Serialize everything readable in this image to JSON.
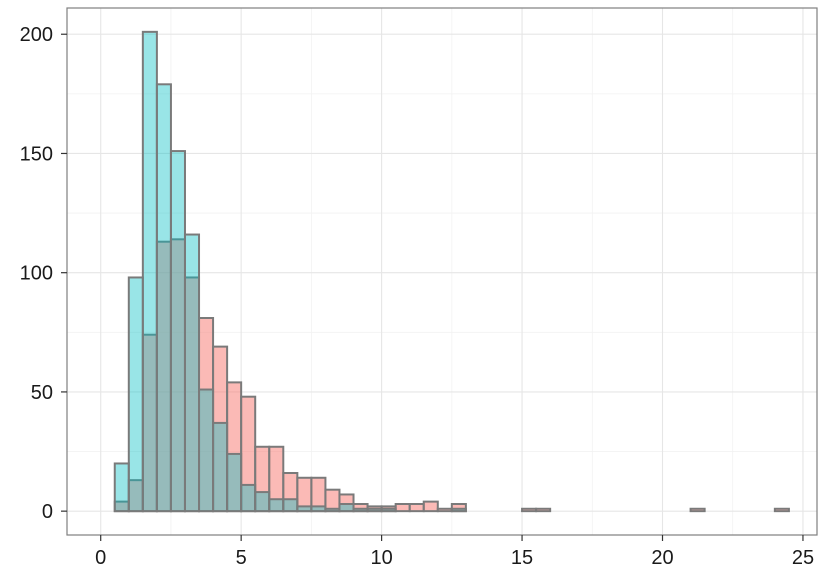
{
  "chart_data": {
    "type": "histogram",
    "title": "",
    "xlabel": "",
    "ylabel": "",
    "xlim": [
      -1.2,
      25.5
    ],
    "ylim": [
      -10,
      211
    ],
    "grid": true,
    "legend": "none",
    "bin_width": 0.5,
    "x_ticks": [
      "0",
      "5",
      "10",
      "15",
      "20",
      "25"
    ],
    "y_ticks": [
      "0",
      "50",
      "100",
      "150",
      "200"
    ],
    "x_tick_values": [
      0,
      5,
      10,
      15,
      20,
      25
    ],
    "y_tick_values": [
      0,
      50,
      100,
      150,
      200
    ],
    "series": [
      {
        "color": "#F8766D",
        "fill_opacity": 0.5,
        "bins": [
          {
            "x": 0.25,
            "y": 0
          },
          {
            "x": 0.75,
            "y": 4
          },
          {
            "x": 1.25,
            "y": 13
          },
          {
            "x": 1.75,
            "y": 74
          },
          {
            "x": 2.25,
            "y": 113
          },
          {
            "x": 2.75,
            "y": 114
          },
          {
            "x": 3.25,
            "y": 98
          },
          {
            "x": 3.75,
            "y": 81
          },
          {
            "x": 4.25,
            "y": 69
          },
          {
            "x": 4.75,
            "y": 54
          },
          {
            "x": 5.25,
            "y": 48
          },
          {
            "x": 5.75,
            "y": 27
          },
          {
            "x": 6.25,
            "y": 27
          },
          {
            "x": 6.75,
            "y": 16
          },
          {
            "x": 7.25,
            "y": 14
          },
          {
            "x": 7.75,
            "y": 14
          },
          {
            "x": 8.25,
            "y": 9
          },
          {
            "x": 8.75,
            "y": 7
          },
          {
            "x": 9.25,
            "y": 3
          },
          {
            "x": 9.75,
            "y": 2
          },
          {
            "x": 10.25,
            "y": 2
          },
          {
            "x": 10.75,
            "y": 3
          },
          {
            "x": 11.25,
            "y": 3
          },
          {
            "x": 11.75,
            "y": 4
          },
          {
            "x": 12.25,
            "y": 1
          },
          {
            "x": 12.75,
            "y": 3
          },
          {
            "x": 13.25,
            "y": 0
          },
          {
            "x": 13.75,
            "y": 0
          },
          {
            "x": 14.25,
            "y": 0
          },
          {
            "x": 14.75,
            "y": 0
          },
          {
            "x": 15.25,
            "y": 1
          },
          {
            "x": 15.75,
            "y": 1
          },
          {
            "x": 16.25,
            "y": 0
          },
          {
            "x": 16.75,
            "y": 0
          },
          {
            "x": 17.25,
            "y": 0
          },
          {
            "x": 17.75,
            "y": 0
          },
          {
            "x": 18.25,
            "y": 0
          },
          {
            "x": 18.75,
            "y": 0
          },
          {
            "x": 19.25,
            "y": 0
          },
          {
            "x": 19.75,
            "y": 0
          },
          {
            "x": 20.25,
            "y": 0
          },
          {
            "x": 20.75,
            "y": 0
          },
          {
            "x": 21.25,
            "y": 1
          },
          {
            "x": 21.75,
            "y": 0
          },
          {
            "x": 22.25,
            "y": 0
          },
          {
            "x": 22.75,
            "y": 0
          },
          {
            "x": 23.25,
            "y": 0
          },
          {
            "x": 23.75,
            "y": 0
          },
          {
            "x": 24.25,
            "y": 1
          }
        ]
      },
      {
        "color": "#00BFC4",
        "fill_opacity": 0.4,
        "bins": [
          {
            "x": 0.25,
            "y": 0
          },
          {
            "x": 0.75,
            "y": 20
          },
          {
            "x": 1.25,
            "y": 98
          },
          {
            "x": 1.75,
            "y": 201
          },
          {
            "x": 2.25,
            "y": 179
          },
          {
            "x": 2.75,
            "y": 151
          },
          {
            "x": 3.25,
            "y": 116
          },
          {
            "x": 3.75,
            "y": 51
          },
          {
            "x": 4.25,
            "y": 37
          },
          {
            "x": 4.75,
            "y": 24
          },
          {
            "x": 5.25,
            "y": 11
          },
          {
            "x": 5.75,
            "y": 8
          },
          {
            "x": 6.25,
            "y": 5
          },
          {
            "x": 6.75,
            "y": 5
          },
          {
            "x": 7.25,
            "y": 2
          },
          {
            "x": 7.75,
            "y": 2
          },
          {
            "x": 8.25,
            "y": 1
          },
          {
            "x": 8.75,
            "y": 3
          },
          {
            "x": 9.25,
            "y": 1
          },
          {
            "x": 9.75,
            "y": 1
          },
          {
            "x": 10.25,
            "y": 1
          },
          {
            "x": 10.75,
            "y": 0
          },
          {
            "x": 11.25,
            "y": 0
          },
          {
            "x": 11.75,
            "y": 0
          },
          {
            "x": 12.25,
            "y": 0
          },
          {
            "x": 12.75,
            "y": 1
          }
        ]
      }
    ]
  }
}
